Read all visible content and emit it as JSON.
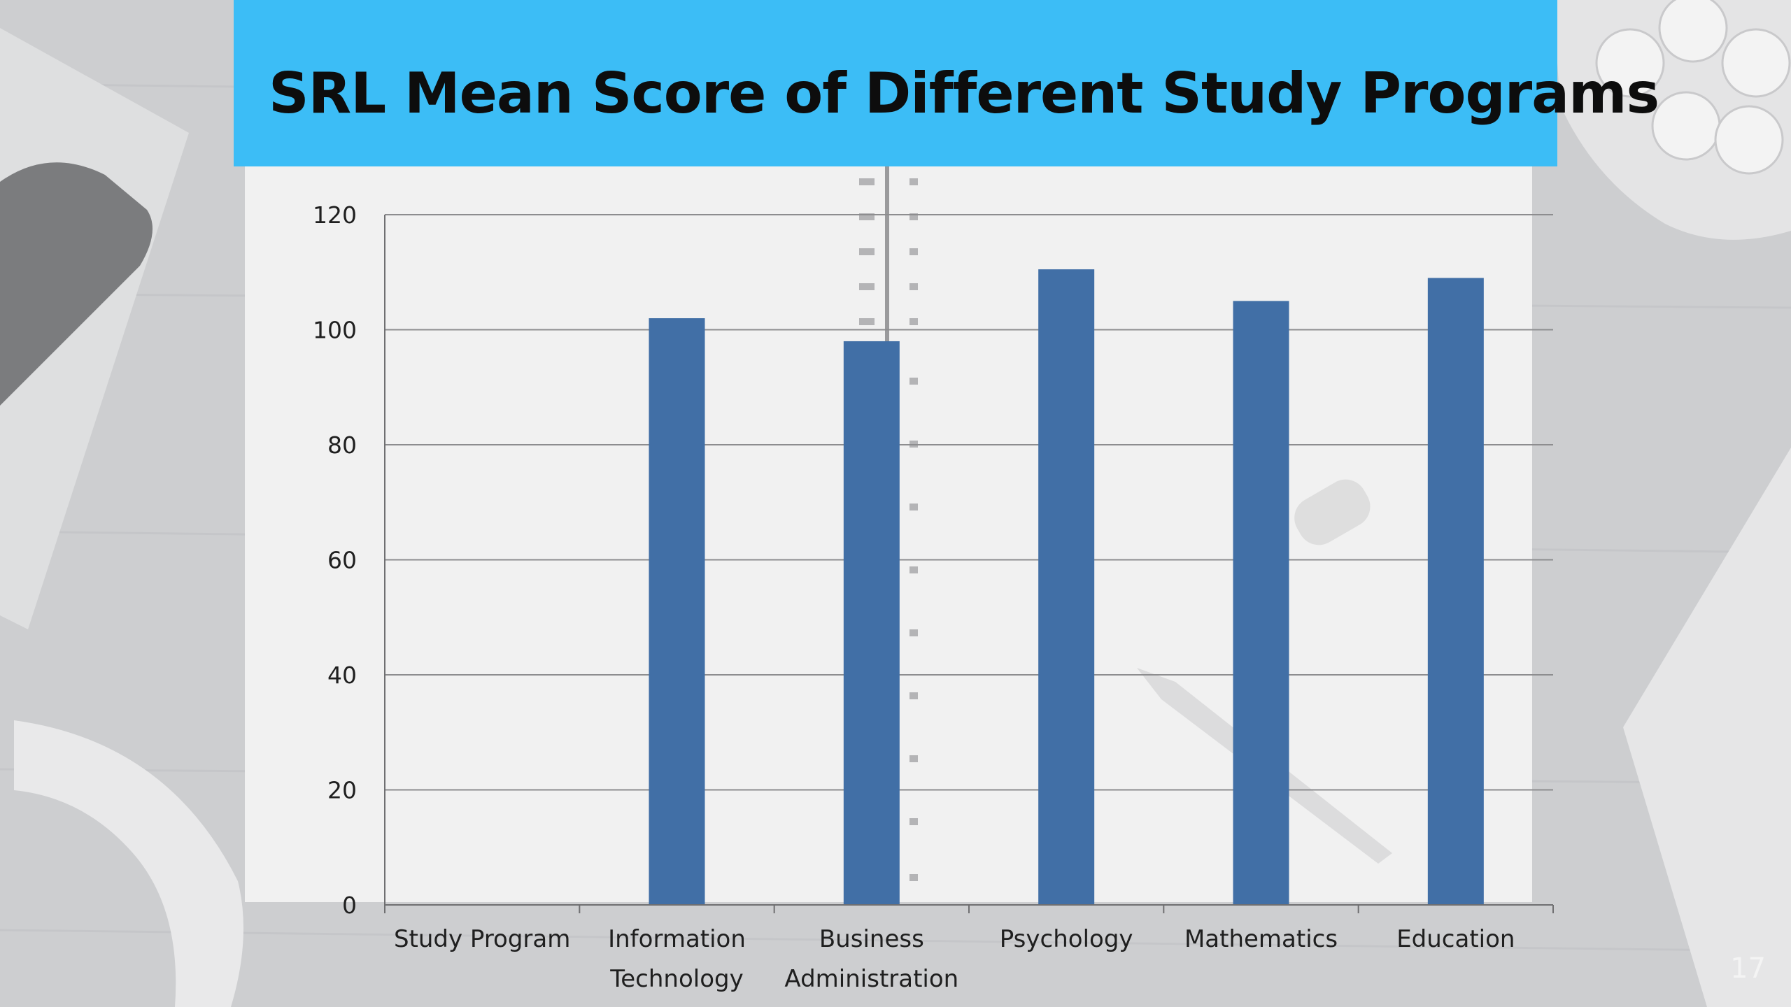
{
  "slide": {
    "title": "SRL Mean Score of Different Study Programs",
    "page_number": "17",
    "banner_color": "#3cbdf6"
  },
  "chart_data": {
    "type": "bar",
    "title": "",
    "xlabel": "",
    "ylabel": "",
    "categories": [
      [
        "Study Program"
      ],
      [
        "Information",
        "Technology"
      ],
      [
        "Business",
        "Administration"
      ],
      [
        "Psychology"
      ],
      [
        "Mathematics"
      ],
      [
        "Education"
      ]
    ],
    "values": [
      null,
      102,
      98,
      110.5,
      105,
      109
    ],
    "ylim": [
      0,
      120
    ],
    "yticks": [
      0,
      20,
      40,
      60,
      80,
      100,
      120
    ],
    "grid": true,
    "legend": "none",
    "bar_color": "#416fa6"
  }
}
